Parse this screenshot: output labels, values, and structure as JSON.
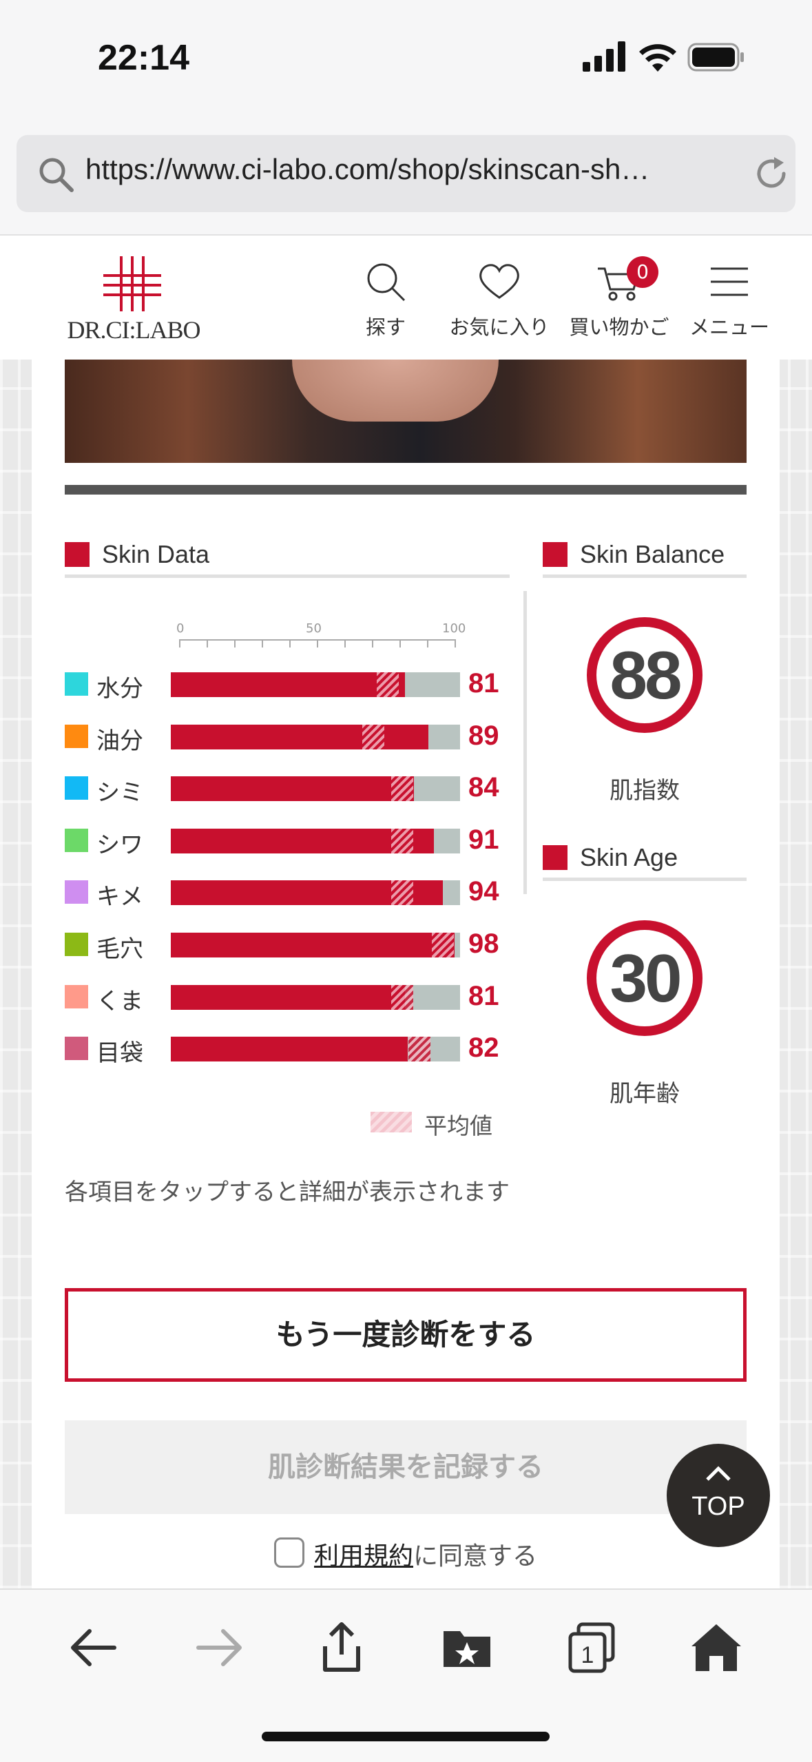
{
  "status_bar": {
    "time": "22:14"
  },
  "browser": {
    "url": "https://www.ci-labo.com/shop/skinscan-sh…"
  },
  "site_header": {
    "logo_text": "DR.CI:LABO",
    "nav": [
      {
        "label": "探す",
        "icon": "search-icon"
      },
      {
        "label": "お気に入り",
        "icon": "heart-icon"
      },
      {
        "label": "買い物かご",
        "icon": "cart-icon",
        "badge": "0"
      },
      {
        "label": "メニュー",
        "icon": "menu-icon"
      }
    ]
  },
  "skin_data": {
    "title": "Skin Data",
    "axis_ticks": [
      "0",
      "50",
      "100"
    ],
    "metrics": [
      {
        "label": "水分",
        "value": "81",
        "score": 81,
        "average": 75,
        "color": "#2dd6dc"
      },
      {
        "label": "油分",
        "value": "89",
        "score": 89,
        "average": 70,
        "color": "#ff8a10"
      },
      {
        "label": "シミ",
        "value": "84",
        "score": 84,
        "average": 80,
        "color": "#12b9f5"
      },
      {
        "label": "シワ",
        "value": "91",
        "score": 91,
        "average": 80,
        "color": "#6cd968"
      },
      {
        "label": "キメ",
        "value": "94",
        "score": 94,
        "average": 80,
        "color": "#cf8ef0"
      },
      {
        "label": "毛穴",
        "value": "98",
        "score": 98,
        "average": 94,
        "color": "#8cb916"
      },
      {
        "label": "くま",
        "value": "81",
        "score": 81,
        "average": 80,
        "color": "#ff9a8a"
      },
      {
        "label": "目袋",
        "value": "82",
        "score": 82,
        "average": 86,
        "color": "#d05a7c"
      }
    ],
    "legend_label": "平均値",
    "note": "各項目をタップすると詳細が表示されます"
  },
  "skin_balance": {
    "title": "Skin Balance",
    "value": "88",
    "label": "肌指数"
  },
  "skin_age": {
    "title": "Skin Age",
    "value": "30",
    "label": "肌年齢"
  },
  "actions": {
    "retry_label": "もう一度診断をする",
    "record_label": "肌診断結果を記録する",
    "terms_link": "利用規約",
    "terms_suffix": "に同意する",
    "top_label": "TOP"
  },
  "colors": {
    "brand_red": "#c8102e",
    "track_gray": "#b9c4c1"
  }
}
